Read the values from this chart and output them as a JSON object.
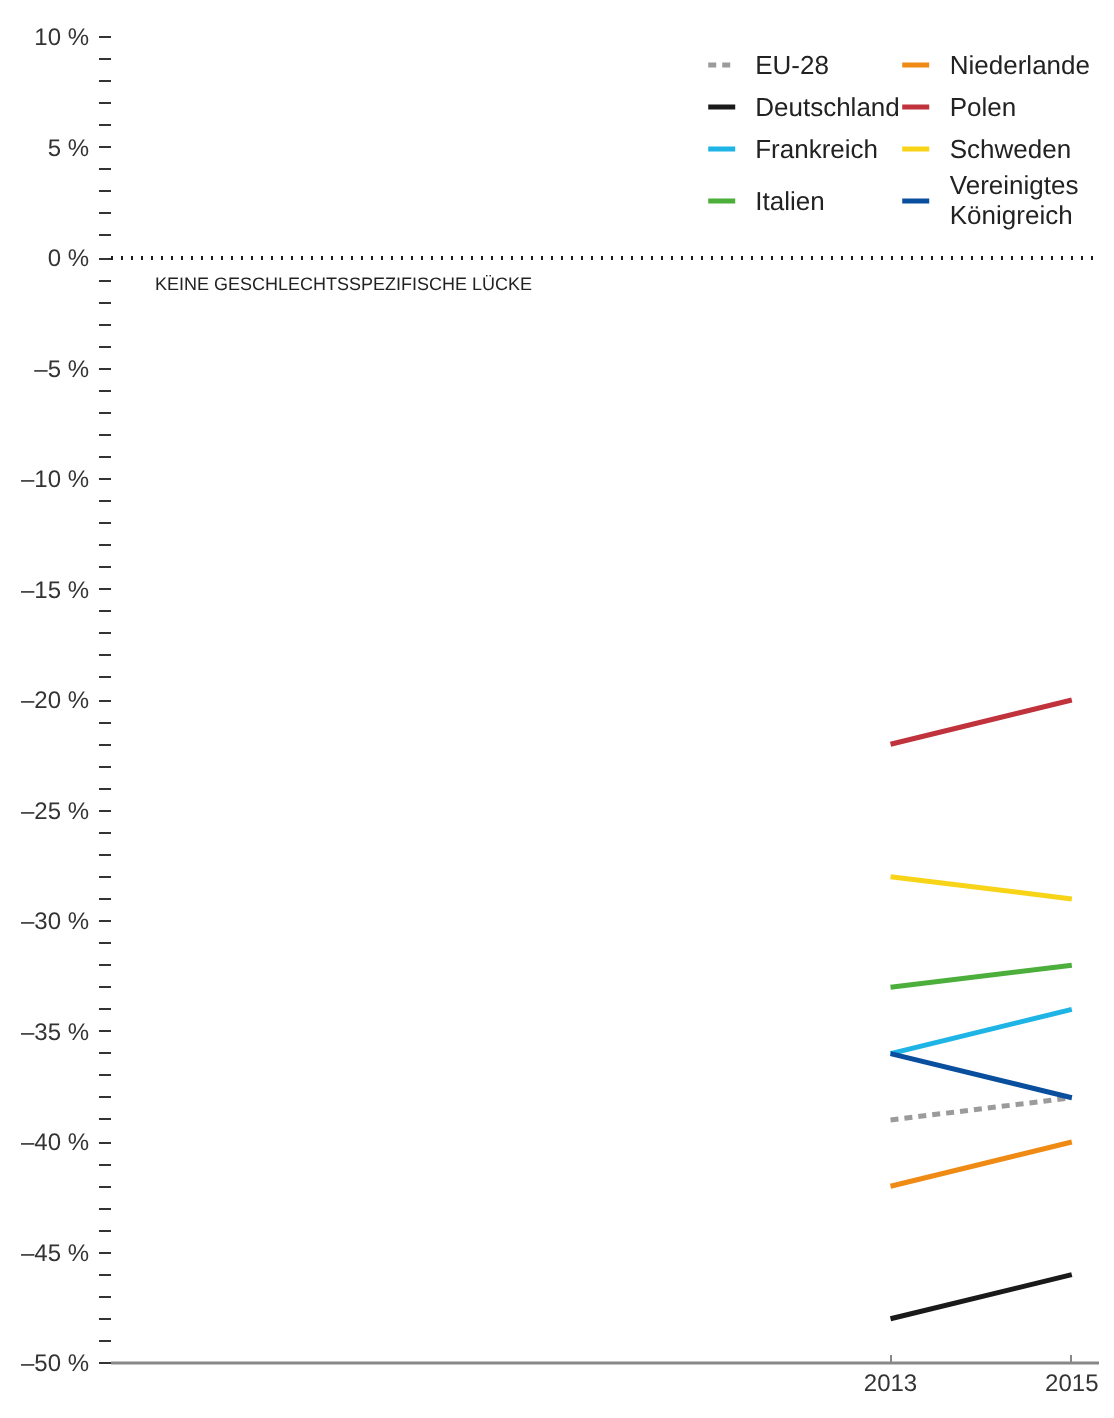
{
  "chart_data": {
    "type": "line",
    "x": [
      2013,
      2015
    ],
    "xlim": [
      2004.4,
      2015.3
    ],
    "xticks": [
      2013,
      2015
    ],
    "ylim": [
      -50,
      10
    ],
    "yticks": [
      {
        "value": 10,
        "label": "10 %"
      },
      {
        "value": 9,
        "label": null
      },
      {
        "value": 8,
        "label": null
      },
      {
        "value": 7,
        "label": null
      },
      {
        "value": 6,
        "label": null
      },
      {
        "value": 5,
        "label": "5 %"
      },
      {
        "value": 4,
        "label": null
      },
      {
        "value": 3,
        "label": null
      },
      {
        "value": 2,
        "label": null
      },
      {
        "value": 1,
        "label": null
      },
      {
        "value": 0,
        "label": "0 %"
      },
      {
        "value": -1,
        "label": null
      },
      {
        "value": -2,
        "label": null
      },
      {
        "value": -3,
        "label": null
      },
      {
        "value": -4,
        "label": null
      },
      {
        "value": -5,
        "label": "–5 %"
      },
      {
        "value": -6,
        "label": null
      },
      {
        "value": -7,
        "label": null
      },
      {
        "value": -8,
        "label": null
      },
      {
        "value": -9,
        "label": null
      },
      {
        "value": -10,
        "label": "–10 %"
      },
      {
        "value": -11,
        "label": null
      },
      {
        "value": -12,
        "label": null
      },
      {
        "value": -13,
        "label": null
      },
      {
        "value": -14,
        "label": null
      },
      {
        "value": -15,
        "label": "–15 %"
      },
      {
        "value": -16,
        "label": null
      },
      {
        "value": -17,
        "label": null
      },
      {
        "value": -18,
        "label": null
      },
      {
        "value": -19,
        "label": null
      },
      {
        "value": -20,
        "label": "–20 %"
      },
      {
        "value": -21,
        "label": null
      },
      {
        "value": -22,
        "label": null
      },
      {
        "value": -23,
        "label": null
      },
      {
        "value": -24,
        "label": null
      },
      {
        "value": -25,
        "label": "–25 %"
      },
      {
        "value": -26,
        "label": null
      },
      {
        "value": -27,
        "label": null
      },
      {
        "value": -28,
        "label": null
      },
      {
        "value": -29,
        "label": null
      },
      {
        "value": -30,
        "label": "–30 %"
      },
      {
        "value": -31,
        "label": null
      },
      {
        "value": -32,
        "label": null
      },
      {
        "value": -33,
        "label": null
      },
      {
        "value": -34,
        "label": null
      },
      {
        "value": -35,
        "label": "–35 %"
      },
      {
        "value": -36,
        "label": null
      },
      {
        "value": -37,
        "label": null
      },
      {
        "value": -38,
        "label": null
      },
      {
        "value": -39,
        "label": null
      },
      {
        "value": -40,
        "label": "–40 %"
      },
      {
        "value": -41,
        "label": null
      },
      {
        "value": -42,
        "label": null
      },
      {
        "value": -43,
        "label": null
      },
      {
        "value": -44,
        "label": null
      },
      {
        "value": -45,
        "label": "–45 %"
      },
      {
        "value": -46,
        "label": null
      },
      {
        "value": -47,
        "label": null
      },
      {
        "value": -48,
        "label": null
      },
      {
        "value": -49,
        "label": null
      },
      {
        "value": -50,
        "label": "–50 %"
      }
    ],
    "series": [
      {
        "name": "EU-28",
        "color": "#9b9b9b",
        "values": [
          -39,
          -38
        ],
        "line_style": "dashed"
      },
      {
        "name": "Deutschland",
        "color": "#1a1a1a",
        "values": [
          -48,
          -46
        ]
      },
      {
        "name": "Frankreich",
        "color": "#1fb4e6",
        "values": [
          -36,
          -34
        ]
      },
      {
        "name": "Italien",
        "color": "#4caf3c",
        "values": [
          -33,
          -32
        ]
      },
      {
        "name": "Niederlande",
        "color": "#ef8a14",
        "values": [
          -42,
          -40
        ]
      },
      {
        "name": "Polen",
        "color": "#c0323c",
        "values": [
          -22,
          -20
        ]
      },
      {
        "name": "Schweden",
        "color": "#f7d417",
        "values": [
          -28,
          -29
        ]
      },
      {
        "name": "Vereinigtes Königreich",
        "color": "#0a4f9e",
        "values": [
          -36,
          -38
        ]
      }
    ],
    "ref_lines": [
      {
        "axis": "y",
        "value": 0,
        "label": "KEINE GESCHLECHTSSPEZIFISCHE LÜCKE",
        "color": "#1a1a1a",
        "line_style": "dotted"
      }
    ],
    "line_style": "solid",
    "marker": "none",
    "grid": false,
    "legend": "top right"
  }
}
